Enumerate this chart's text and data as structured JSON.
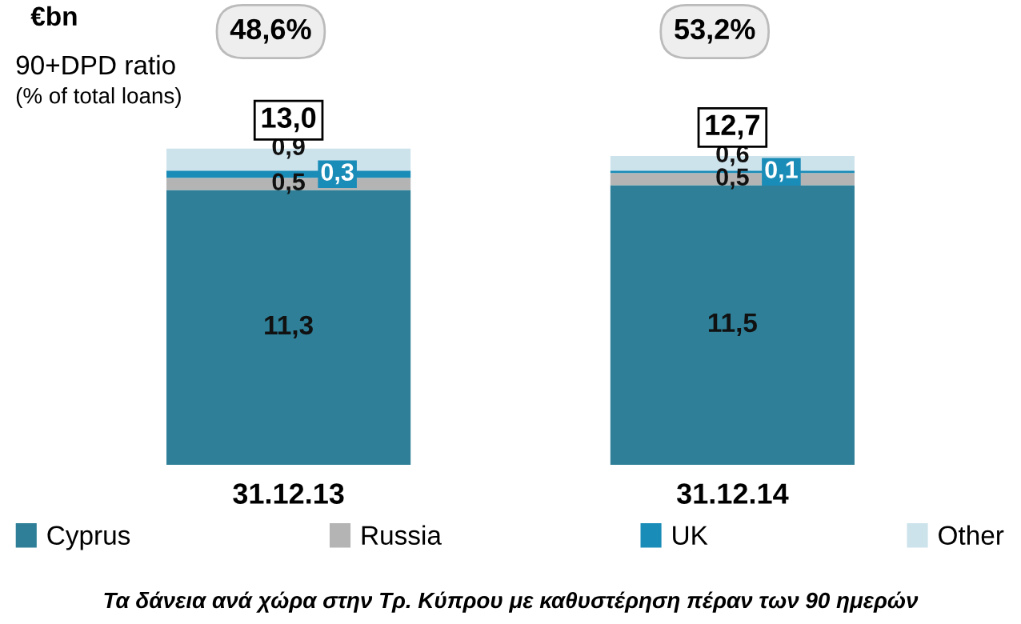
{
  "chart_data": {
    "type": "bar",
    "stacked": true,
    "ylabel": "€bn",
    "categories": [
      "31.12.13",
      "31.12.14"
    ],
    "series": [
      {
        "name": "Cyprus",
        "color": "#2e7f97",
        "values": [
          11.3,
          11.5
        ],
        "value_labels": [
          "11,3",
          "11,5"
        ]
      },
      {
        "name": "Russia",
        "color": "#b4b4b4",
        "values": [
          0.5,
          0.5
        ],
        "value_labels": [
          "0,5",
          "0,5"
        ]
      },
      {
        "name": "UK",
        "color": "#1a8cb8",
        "values": [
          0.3,
          0.1
        ],
        "value_labels": [
          "0,3",
          "0,1"
        ]
      },
      {
        "name": "Other",
        "color": "#cde3ec",
        "values": [
          0.9,
          0.6
        ],
        "value_labels": [
          "0,9",
          "0,6"
        ]
      }
    ],
    "totals": [
      "13,0",
      "12,7"
    ],
    "annotations": [
      "48,6%",
      "53,2%",
      "90+DPD ratio",
      "(% of total loans)",
      "Τα δάνεια ανά χώρα στην Τρ. Κύπρου με καθυστέρηση πέραν των 90 ημερών"
    ],
    "legend": "bottom",
    "grid": false
  }
}
